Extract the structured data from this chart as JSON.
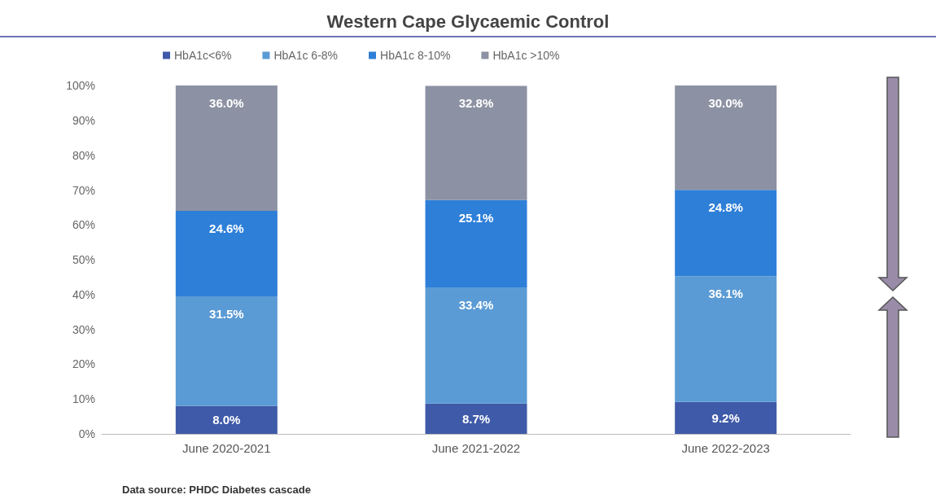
{
  "chart_data": {
    "type": "bar",
    "stacked": true,
    "title": "Western Cape Glycaemic Control",
    "categories": [
      "June 2020-2021",
      "June 2021-2022",
      "June 2022-2023"
    ],
    "series": [
      {
        "name": "HbA1c<6%",
        "color": "#3f5aa8",
        "values": [
          8.0,
          8.7,
          9.2
        ],
        "value_labels": [
          "8.0%",
          "8.7%",
          "9.2%"
        ]
      },
      {
        "name": "HbA1c 6-8%",
        "color": "#5b9bd5",
        "values": [
          31.5,
          33.4,
          36.1
        ],
        "value_labels": [
          "31.5%",
          "33.4%",
          "36.1%"
        ]
      },
      {
        "name": "HbA1c 8-10%",
        "color": "#2e7fd8",
        "values": [
          24.6,
          25.1,
          24.8
        ],
        "value_labels": [
          "24.6%",
          "25.1%",
          "24.8%"
        ]
      },
      {
        "name": "HbA1c >10%",
        "color": "#8c92a3",
        "values": [
          36.0,
          32.8,
          30.0
        ],
        "value_labels": [
          "36.0%",
          "32.8%",
          "30.0%"
        ]
      }
    ],
    "ylim": [
      0,
      100.1
    ],
    "yticks": [
      {
        "value": 0,
        "label": "0%"
      },
      {
        "value": 10,
        "label": "10%"
      },
      {
        "value": 20,
        "label": "20%"
      },
      {
        "value": 30,
        "label": "30%"
      },
      {
        "value": 40,
        "label": "40%"
      },
      {
        "value": 50,
        "label": "50%"
      },
      {
        "value": 60,
        "label": "60%"
      },
      {
        "value": 70,
        "label": "70%"
      },
      {
        "value": 80,
        "label": "80%"
      },
      {
        "value": 90,
        "label": "90%"
      },
      {
        "value": 100,
        "label": "100%"
      }
    ],
    "grid": false,
    "legend": "top",
    "annotations": [
      "Data source: PHDC Diabetes cascade"
    ]
  }
}
